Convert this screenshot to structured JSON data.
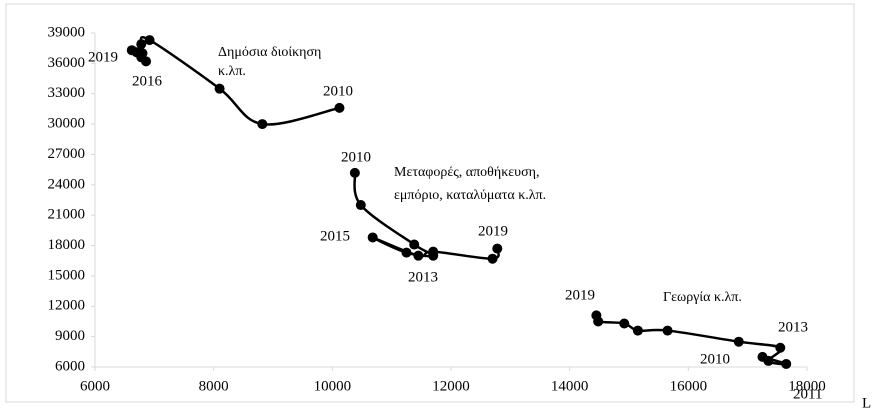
{
  "chart_data": {
    "type": "scatter_smooth",
    "xlim": [
      6000,
      18000
    ],
    "xticks": [
      6000,
      8000,
      10000,
      12000,
      14000,
      16000,
      18000
    ],
    "ylim": [
      6000,
      39000
    ],
    "yticks": [
      6000,
      9000,
      12000,
      15000,
      18000,
      21000,
      24000,
      27000,
      30000,
      33000,
      36000,
      39000
    ],
    "series": [
      {
        "color": "#000000",
        "x": [
          10120,
          8820,
          8100,
          6920,
          6780,
          6800,
          6860,
          6780,
          6700,
          6620
        ],
        "values": [
          31600,
          30000,
          33500,
          38300,
          37900,
          37000,
          36200,
          36600,
          37100,
          37300
        ]
      },
      {
        "color": "#000000",
        "x": [
          10380,
          10480,
          11380,
          11700,
          11250,
          10680,
          11450,
          11700,
          12700,
          12780
        ],
        "values": [
          25180,
          22000,
          18100,
          17000,
          17300,
          18800,
          17000,
          17400,
          16700,
          17700
        ]
      },
      {
        "color": "#000000",
        "x": [
          17250,
          17650,
          17350,
          17550,
          16850,
          15650,
          15150,
          14920,
          14480,
          14450
        ],
        "values": [
          7000,
          6300,
          6600,
          7900,
          8500,
          9600,
          9600,
          10300,
          10500,
          11100
        ]
      }
    ],
    "annotations": [
      "2019",
      "2016",
      "Δημόσια διοίκηση",
      "κ.λπ.",
      "2010",
      "2010",
      "Μεταφορές, αποθήκευση,",
      "εμπόριο, καταλύματα κ.λπ.",
      "2015",
      "2013",
      "2019",
      "2019",
      "Γεωργία κ.λπ.",
      "2013",
      "2010",
      "2011"
    ],
    "legend_fragment": "L"
  }
}
